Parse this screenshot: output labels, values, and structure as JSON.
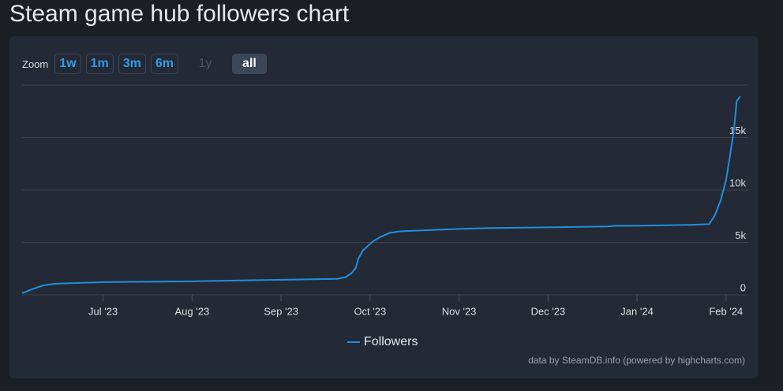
{
  "chart_data": {
    "type": "line",
    "title": "Steam game hub followers chart",
    "zoom_label": "Zoom",
    "zoom_buttons": [
      "1w",
      "1m",
      "3m",
      "6m",
      "1y",
      "all"
    ],
    "credits": "data by SteamDB.info (powered by highcharts.com)",
    "x": [
      5.09,
      5.2,
      5.33,
      5.46,
      5.73,
      6.0,
      7.0,
      8.0,
      8.63,
      8.72,
      8.79,
      8.84,
      8.87,
      8.92,
      9.03,
      9.12,
      9.22,
      9.34,
      10.0,
      10.3,
      10.98,
      11.67,
      11.76,
      12.0,
      12.59,
      12.81,
      12.87,
      12.94,
      13.0,
      13.05,
      13.09,
      13.12,
      13.16
    ],
    "series": [
      {
        "name": "Followers",
        "color": "#1f8fe0",
        "values": [
          150,
          530,
          900,
          1060,
          1140,
          1210,
          1290,
          1440,
          1520,
          1670,
          2050,
          2580,
          3480,
          4240,
          5080,
          5530,
          5910,
          6060,
          6290,
          6360,
          6440,
          6520,
          6590,
          6590,
          6670,
          6740,
          7500,
          9020,
          10910,
          13560,
          15830,
          18480,
          18940
        ]
      }
    ],
    "xlim": [
      5.09,
      13.25
    ],
    "xticks": [
      {
        "value": 6,
        "label": "Jul '23"
      },
      {
        "value": 7,
        "label": "Aug '23"
      },
      {
        "value": 8,
        "label": "Sep '23"
      },
      {
        "value": 9,
        "label": "Oct '23"
      },
      {
        "value": 10,
        "label": "Nov '23"
      },
      {
        "value": 11,
        "label": "Dec '23"
      },
      {
        "value": 12,
        "label": "Jan '24"
      },
      {
        "value": 13,
        "label": "Feb '24"
      }
    ],
    "ylim": [
      0,
      20000
    ],
    "yticks": [
      0,
      {
        "value": 5000,
        "label": "5k"
      },
      {
        "value": 10000,
        "label": "10k"
      },
      {
        "value": 15000,
        "label": "15k"
      }
    ],
    "grid": true,
    "legend": "bottom"
  }
}
